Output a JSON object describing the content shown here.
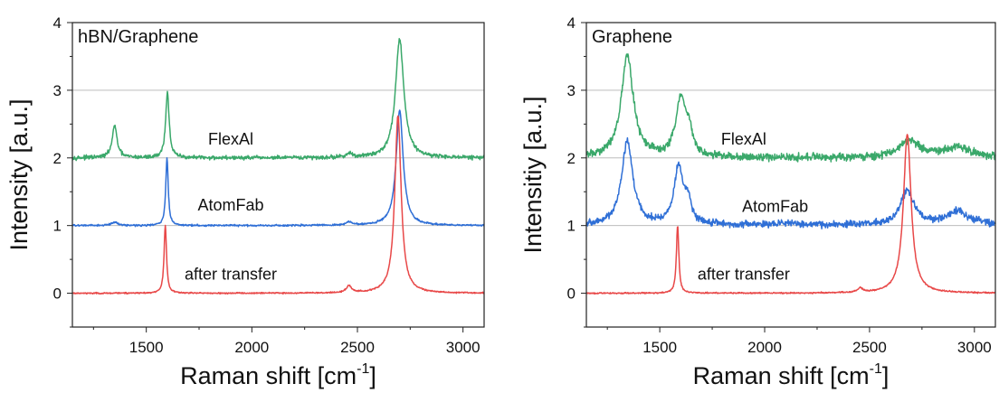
{
  "chart_data": [
    {
      "type": "line",
      "title": "hBN/Graphene",
      "xlabel": "Raman shift [cm",
      "xlabel_sup": "-1",
      "xlabel_end": "]",
      "ylabel": "Intensity [a.u.]",
      "xlim": [
        1150,
        3100
      ],
      "ylim": [
        -0.5,
        4
      ],
      "x_ticks": [
        1500,
        2000,
        2500,
        3000
      ],
      "y_ticks": [
        0,
        1,
        2,
        3,
        4
      ],
      "grid_y": [
        1,
        2,
        3
      ],
      "annotations": [
        {
          "text": "FlexAl",
          "x": 1900,
          "y": 2.2
        },
        {
          "text": "AtomFab",
          "x": 1900,
          "y": 1.22
        },
        {
          "text": "after transfer",
          "x": 1900,
          "y": 0.2
        }
      ],
      "series": [
        {
          "color": "#3aa86a",
          "offset": 2,
          "noise": 0.018,
          "peaks": [
            {
              "x": 1350,
              "h": 0.47,
              "w": 14
            },
            {
              "x": 1600,
              "h": 0.97,
              "w": 10
            },
            {
              "x": 2460,
              "h": 0.05,
              "w": 20
            },
            {
              "x": 2700,
              "h": 1.75,
              "w": 24
            }
          ]
        },
        {
          "color": "#2f6fd6",
          "offset": 1,
          "noise": 0.008,
          "peaks": [
            {
              "x": 1350,
              "h": 0.05,
              "w": 18
            },
            {
              "x": 1598,
              "h": 1.0,
              "w": 7
            },
            {
              "x": 2460,
              "h": 0.05,
              "w": 15
            },
            {
              "x": 2700,
              "h": 1.7,
              "w": 20
            }
          ]
        },
        {
          "color": "#e84848",
          "offset": 0,
          "noise": 0.006,
          "peaks": [
            {
              "x": 1590,
              "h": 1.0,
              "w": 7
            },
            {
              "x": 2460,
              "h": 0.1,
              "w": 15
            },
            {
              "x": 2692,
              "h": 2.62,
              "w": 18
            }
          ]
        }
      ]
    },
    {
      "type": "line",
      "title": "Graphene",
      "xlabel": "Raman shift [cm",
      "xlabel_sup": "-1",
      "xlabel_end": "]",
      "ylabel": "Intensitiy [a.u.]",
      "xlim": [
        1150,
        3100
      ],
      "ylim": [
        -0.5,
        4
      ],
      "x_ticks": [
        1500,
        2000,
        2500,
        3000
      ],
      "y_ticks": [
        0,
        1,
        2,
        3,
        4
      ],
      "grid_y": [
        1,
        2,
        3
      ],
      "annotations": [
        {
          "text": "FlexAl",
          "x": 1900,
          "y": 2.2
        },
        {
          "text": "AtomFab",
          "x": 2050,
          "y": 1.2
        },
        {
          "text": "after transfer",
          "x": 1900,
          "y": 0.2
        }
      ],
      "series": [
        {
          "color": "#3aa86a",
          "offset": 2,
          "noise": 0.035,
          "peaks": [
            {
              "x": 1345,
              "h": 1.5,
              "w": 35
            },
            {
              "x": 1600,
              "h": 0.85,
              "w": 28
            },
            {
              "x": 1640,
              "h": 0.3,
              "w": 20
            },
            {
              "x": 2690,
              "h": 0.25,
              "w": 60
            },
            {
              "x": 2920,
              "h": 0.15,
              "w": 80
            }
          ]
        },
        {
          "color": "#2f6fd6",
          "offset": 1,
          "noise": 0.03,
          "peaks": [
            {
              "x": 1345,
              "h": 1.25,
              "w": 32
            },
            {
              "x": 1590,
              "h": 0.85,
              "w": 26
            },
            {
              "x": 1635,
              "h": 0.3,
              "w": 18
            },
            {
              "x": 2680,
              "h": 0.5,
              "w": 40
            },
            {
              "x": 2920,
              "h": 0.2,
              "w": 70
            },
            {
              "x": 2100,
              "h": 0.03,
              "w": 120
            }
          ]
        },
        {
          "color": "#e84848",
          "offset": 0,
          "noise": 0.006,
          "peaks": [
            {
              "x": 1585,
              "h": 1.0,
              "w": 7
            },
            {
              "x": 2455,
              "h": 0.06,
              "w": 15
            },
            {
              "x": 2680,
              "h": 2.35,
              "w": 22
            }
          ]
        }
      ]
    }
  ]
}
